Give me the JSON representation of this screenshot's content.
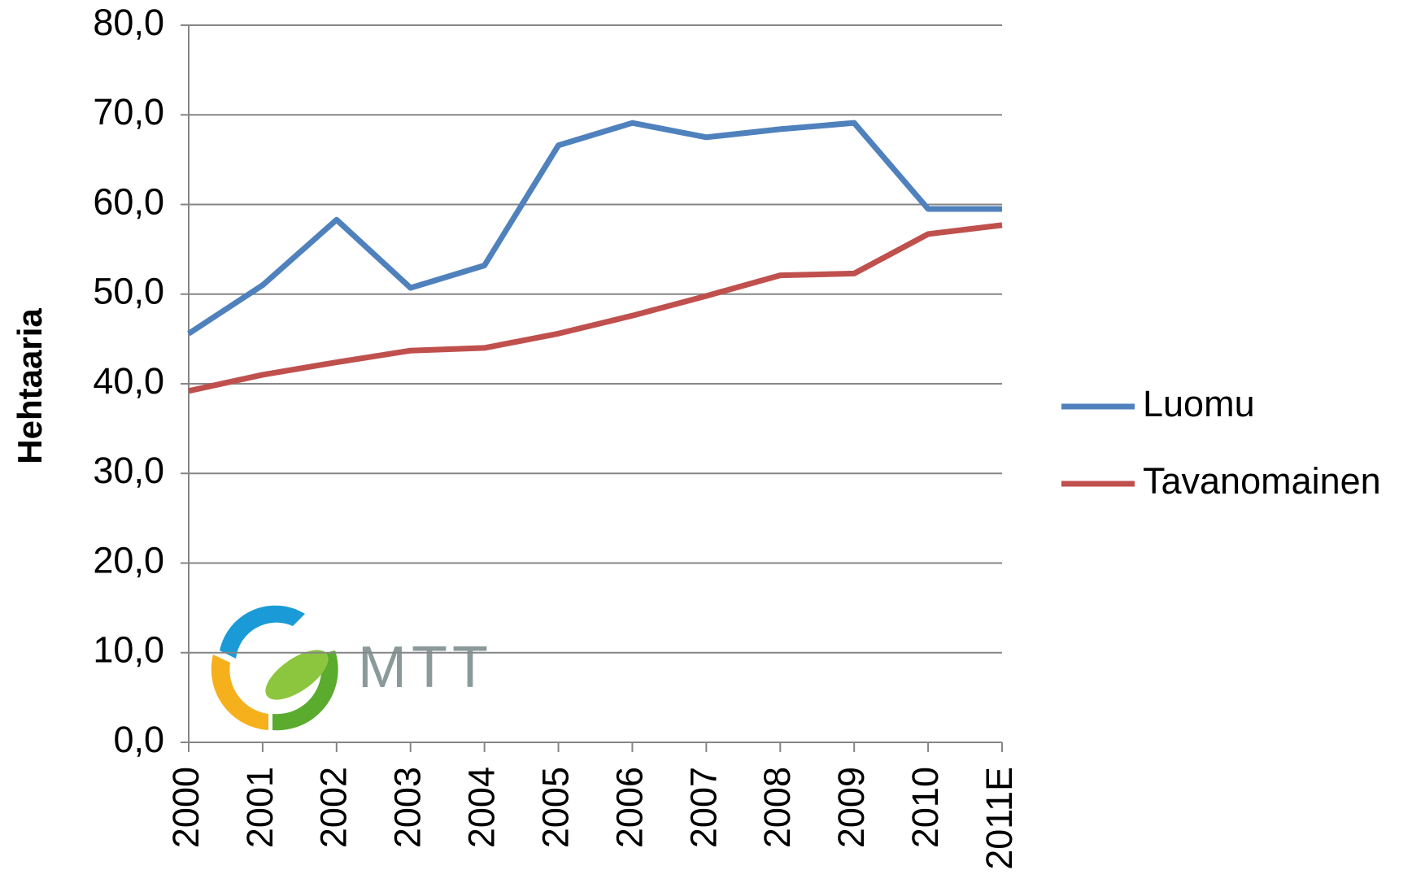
{
  "chart_data": {
    "type": "line",
    "y_label": "Hehtaaria",
    "logo": "MTT",
    "categories": [
      "2000",
      "2001",
      "2002",
      "2003",
      "2004",
      "2005",
      "2006",
      "2007",
      "2008",
      "2009",
      "2010",
      "2011E"
    ],
    "series": [
      {
        "name": "Luomu",
        "color": "#4f81bd",
        "values": [
          45.6,
          51.0,
          58.3,
          50.7,
          53.2,
          66.6,
          69.1,
          67.5,
          68.4,
          69.1,
          59.5,
          59.5
        ]
      },
      {
        "name": "Tavanomainen",
        "color": "#c0504d",
        "values": [
          39.2,
          41.0,
          42.4,
          43.7,
          44.0,
          45.6,
          47.6,
          49.8,
          52.1,
          52.3,
          56.7,
          57.7
        ]
      }
    ],
    "ylim": [
      0,
      80
    ],
    "yticks": [
      {
        "value": 0,
        "label": "0,0"
      },
      {
        "value": 10,
        "label": "10,0"
      },
      {
        "value": 20,
        "label": "20,0"
      },
      {
        "value": 30,
        "label": "30,0"
      },
      {
        "value": 40,
        "label": "40,0"
      },
      {
        "value": 50,
        "label": "50,0"
      },
      {
        "value": 60,
        "label": "60,0"
      },
      {
        "value": 70,
        "label": "70,0"
      },
      {
        "value": 80,
        "label": "80,0"
      }
    ],
    "grid": true,
    "legend": "right"
  }
}
